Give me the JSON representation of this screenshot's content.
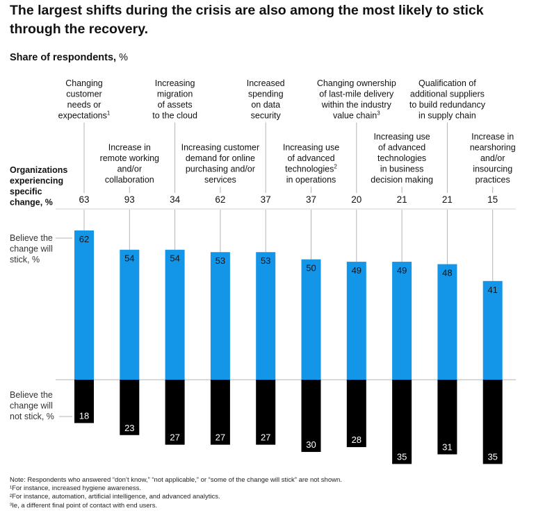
{
  "title": "The largest shifts during the crisis are also among the most likely to stick through the recovery.",
  "subtitle_bold": "Share of respondents,",
  "subtitle_unit": "%",
  "colors": {
    "stick": "#1496e8",
    "not_stick": "#000000",
    "axis": "#b3b3b3",
    "text": "#111111"
  },
  "chart_data": {
    "type": "bar",
    "title": "The largest shifts during the crisis are also among the most likely to stick through the recovery.",
    "ylabel": "Share of respondents, %",
    "categories": [
      {
        "lines": [
          "Changing",
          "customer",
          "needs or",
          "expectations"
        ],
        "sup": "1",
        "pos": "top"
      },
      {
        "lines": [
          "Increase in",
          "remote working",
          "and/or",
          "collaboration"
        ],
        "sup": "",
        "pos": "bottom"
      },
      {
        "lines": [
          "Increasing",
          "migration",
          "of assets",
          "to the cloud"
        ],
        "sup": "",
        "pos": "top"
      },
      {
        "lines": [
          "Increasing customer",
          "demand for online",
          "purchasing and/or",
          "services"
        ],
        "sup": "",
        "pos": "bottom"
      },
      {
        "lines": [
          "Increased",
          "spending",
          "on data",
          "security"
        ],
        "sup": "",
        "pos": "top"
      },
      {
        "lines": [
          "Increasing use",
          "of advanced",
          "technologies",
          "in operations"
        ],
        "sup": "2",
        "sup_line": 2,
        "pos": "bottom"
      },
      {
        "lines": [
          "Changing ownership",
          "of last-mile delivery",
          "within the industry",
          "value chain"
        ],
        "sup": "3",
        "pos": "top"
      },
      {
        "lines": [
          "Increasing use",
          "of advanced",
          "technologies",
          "in business",
          "decision making"
        ],
        "sup": "",
        "pos": "bottom"
      },
      {
        "lines": [
          "Qualification of",
          "additional suppliers",
          "to build redundancy",
          "in supply chain"
        ],
        "sup": "",
        "pos": "top"
      },
      {
        "lines": [
          "Increase in",
          "nearshoring",
          "and/or",
          "insourcing",
          "practices"
        ],
        "sup": "",
        "pos": "bottom"
      }
    ],
    "experiencing_label": [
      "Organizations",
      "experiencing",
      "specific",
      "change, %"
    ],
    "experiencing": [
      63,
      93,
      34,
      62,
      37,
      37,
      20,
      21,
      21,
      15
    ],
    "series": [
      {
        "name": "Believe the change will stick, %",
        "label_lines": [
          "Believe the",
          "change will",
          "stick, %"
        ],
        "values": [
          62,
          54,
          54,
          53,
          53,
          50,
          49,
          49,
          48,
          41
        ]
      },
      {
        "name": "Believe the change will not stick, %",
        "label_lines": [
          "Believe the",
          "change will",
          "not stick, %"
        ],
        "values": [
          18,
          23,
          27,
          27,
          27,
          30,
          28,
          35,
          31,
          35
        ]
      }
    ],
    "ylim": [
      -35,
      62
    ]
  },
  "notes": [
    "Note: Respondents who answered “don’t know,” “not applicable,” or “some of the change will stick” are not shown.",
    "¹For instance, increased hygiene awareness.",
    "²For instance, automation, artificial intelligence, and advanced analytics.",
    "³Ie, a different final point of contact with end users."
  ]
}
